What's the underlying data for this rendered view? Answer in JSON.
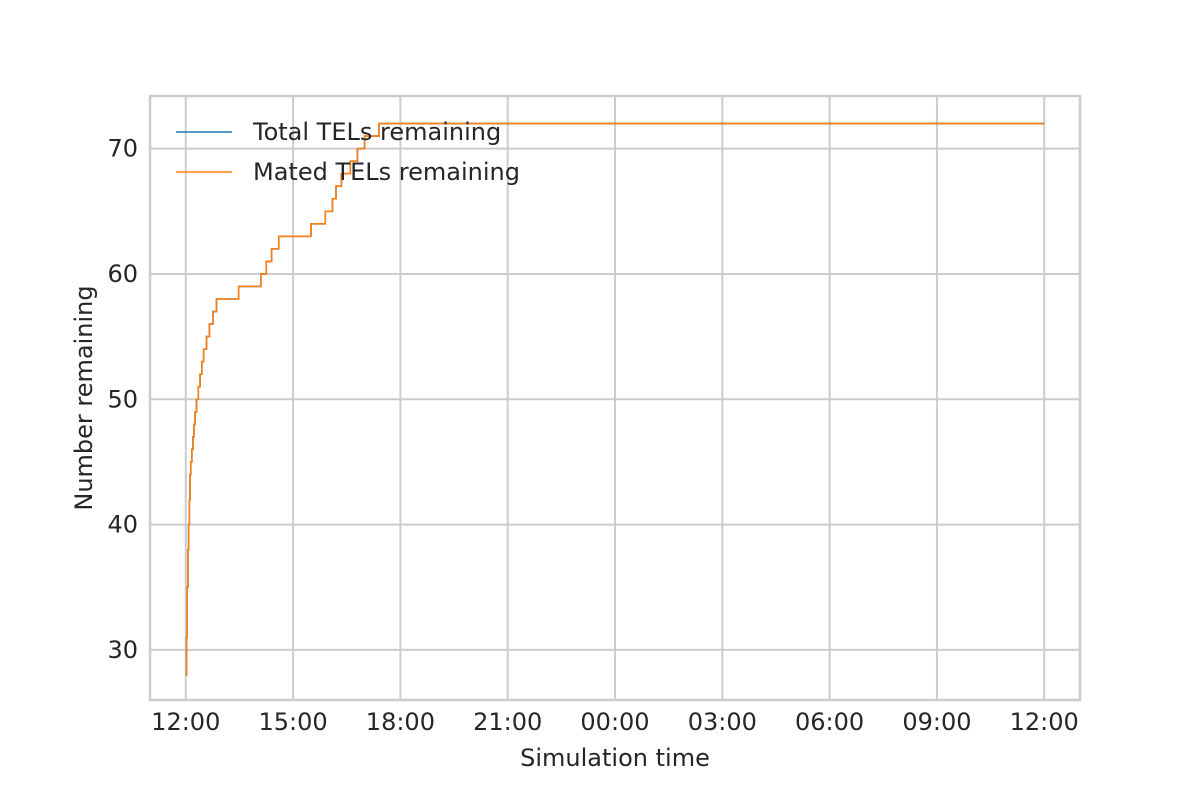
{
  "chart_data": {
    "type": "line",
    "style": "step",
    "title": "",
    "xlabel": "Simulation time",
    "ylabel": "Number remaining",
    "x_unit": "hours",
    "xlim": [
      -1,
      25
    ],
    "ylim": [
      26,
      74.2
    ],
    "x_ticks": [
      {
        "value": 0,
        "label": "12:00"
      },
      {
        "value": 3,
        "label": "15:00"
      },
      {
        "value": 6,
        "label": "18:00"
      },
      {
        "value": 9,
        "label": "21:00"
      },
      {
        "value": 12,
        "label": "00:00"
      },
      {
        "value": 15,
        "label": "03:00"
      },
      {
        "value": 18,
        "label": "06:00"
      },
      {
        "value": 21,
        "label": "09:00"
      },
      {
        "value": 24,
        "label": "12:00"
      }
    ],
    "y_ticks": [
      {
        "value": 30,
        "label": "30"
      },
      {
        "value": 40,
        "label": "40"
      },
      {
        "value": 50,
        "label": "50"
      },
      {
        "value": 60,
        "label": "60"
      },
      {
        "value": 70,
        "label": "70"
      }
    ],
    "grid": true,
    "legend_position": "top-left",
    "series": [
      {
        "name": "Total TELs remaining",
        "color": "#1f77b4",
        "x": [
          0,
          0.02,
          0.04,
          0.06,
          0.08,
          0.1,
          0.12,
          0.14,
          0.17,
          0.2,
          0.23,
          0.26,
          0.3,
          0.35,
          0.4,
          0.45,
          0.5,
          0.58,
          0.66,
          0.76,
          0.86,
          0.98,
          1.1,
          1.28,
          1.48,
          1.78,
          2.1,
          2.25,
          2.4,
          2.6,
          2.9,
          3.0,
          3.5,
          3.7,
          3.9,
          4.1,
          4.2,
          4.35,
          4.5,
          4.6,
          4.8,
          5.0,
          5.4,
          5.6,
          24
        ],
        "y": [
          28,
          31,
          35,
          38,
          40,
          42,
          44,
          45,
          46,
          47,
          48,
          49,
          50,
          51,
          52,
          53,
          54,
          55,
          56,
          57,
          58,
          58,
          58,
          58,
          59,
          59,
          60,
          61,
          62,
          63,
          63,
          63,
          64,
          64,
          65,
          66,
          67,
          68,
          68,
          69,
          70,
          71,
          72,
          72,
          72
        ]
      },
      {
        "name": "Mated TELs remaining",
        "color": "#ff7f0e",
        "x": [
          0,
          0.02,
          0.04,
          0.06,
          0.08,
          0.1,
          0.12,
          0.14,
          0.17,
          0.2,
          0.23,
          0.26,
          0.3,
          0.35,
          0.4,
          0.45,
          0.5,
          0.58,
          0.66,
          0.76,
          0.86,
          0.98,
          1.1,
          1.28,
          1.48,
          1.78,
          2.1,
          2.25,
          2.4,
          2.6,
          2.9,
          3.0,
          3.5,
          3.7,
          3.9,
          4.1,
          4.2,
          4.35,
          4.5,
          4.6,
          4.8,
          5.0,
          5.4,
          5.6,
          24
        ],
        "y": [
          28,
          31,
          35,
          38,
          40,
          42,
          44,
          45,
          46,
          47,
          48,
          49,
          50,
          51,
          52,
          53,
          54,
          55,
          56,
          57,
          58,
          58,
          58,
          58,
          59,
          59,
          60,
          61,
          62,
          63,
          63,
          63,
          64,
          64,
          65,
          66,
          67,
          68,
          68,
          69,
          70,
          71,
          72,
          72,
          72
        ]
      }
    ]
  }
}
